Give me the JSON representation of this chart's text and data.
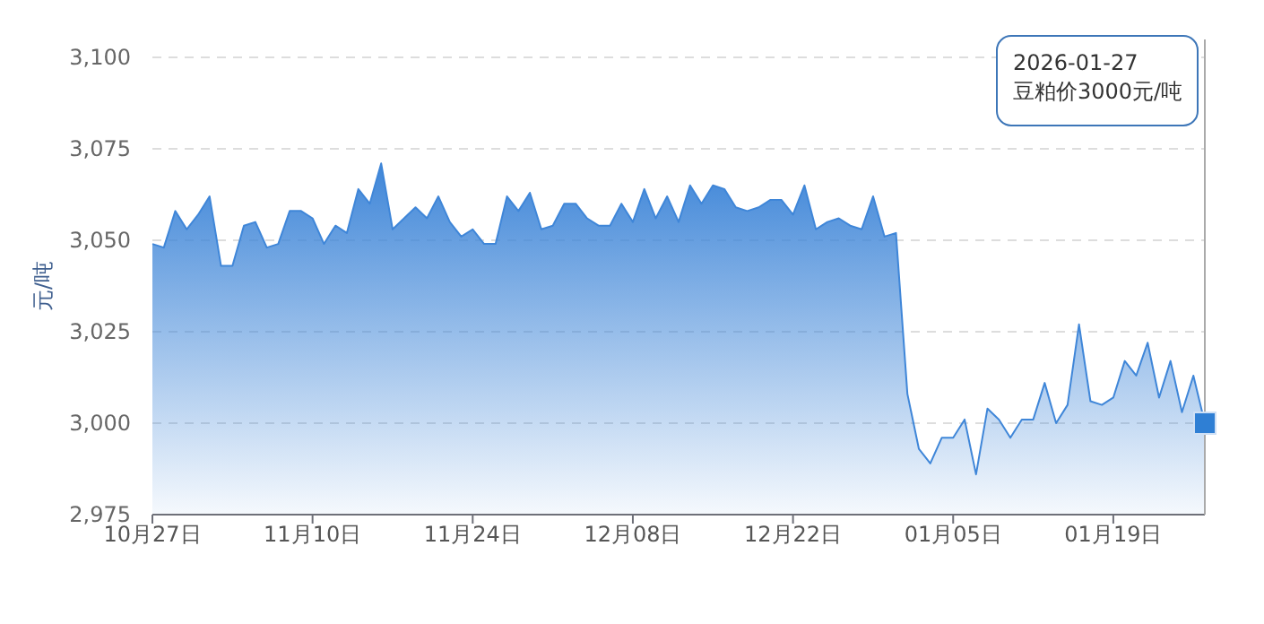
{
  "chart_data": {
    "type": "area",
    "ylabel": "元/吨",
    "x": [
      "2025-10-27",
      "2025-10-28",
      "2025-10-29",
      "2025-10-30",
      "2025-10-31",
      "2025-11-01",
      "2025-11-02",
      "2025-11-03",
      "2025-11-04",
      "2025-11-05",
      "2025-11-06",
      "2025-11-07",
      "2025-11-08",
      "2025-11-09",
      "2025-11-10",
      "2025-11-11",
      "2025-11-12",
      "2025-11-13",
      "2025-11-14",
      "2025-11-15",
      "2025-11-16",
      "2025-11-17",
      "2025-11-18",
      "2025-11-19",
      "2025-11-20",
      "2025-11-21",
      "2025-11-22",
      "2025-11-23",
      "2025-11-24",
      "2025-11-25",
      "2025-11-26",
      "2025-11-27",
      "2025-11-28",
      "2025-11-29",
      "2025-11-30",
      "2025-12-01",
      "2025-12-02",
      "2025-12-03",
      "2025-12-04",
      "2025-12-05",
      "2025-12-06",
      "2025-12-07",
      "2025-12-08",
      "2025-12-09",
      "2025-12-10",
      "2025-12-11",
      "2025-12-12",
      "2025-12-13",
      "2025-12-14",
      "2025-12-15",
      "2025-12-16",
      "2025-12-17",
      "2025-12-18",
      "2025-12-19",
      "2025-12-20",
      "2025-12-21",
      "2025-12-22",
      "2025-12-23",
      "2025-12-24",
      "2025-12-25",
      "2025-12-26",
      "2025-12-27",
      "2025-12-28",
      "2025-12-29",
      "2025-12-30",
      "2025-12-31",
      "2026-01-01",
      "2026-01-02",
      "2026-01-03",
      "2026-01-04",
      "2026-01-05",
      "2026-01-06",
      "2026-01-07",
      "2026-01-08",
      "2026-01-09",
      "2026-01-10",
      "2026-01-11",
      "2026-01-12",
      "2026-01-13",
      "2026-01-14",
      "2026-01-15",
      "2026-01-16",
      "2026-01-17",
      "2026-01-18",
      "2026-01-19",
      "2026-01-20",
      "2026-01-21",
      "2026-01-22",
      "2026-01-23",
      "2026-01-24",
      "2026-01-25",
      "2026-01-26",
      "2026-01-27"
    ],
    "series": [
      {
        "color": "#3f86d8",
        "values": [
          3049,
          3048,
          3058,
          3053,
          3057,
          3062,
          3043,
          3043,
          3054,
          3055,
          3048,
          3049,
          3058,
          3058,
          3056,
          3049,
          3054,
          3052,
          3064,
          3060,
          3071,
          3053,
          3056,
          3059,
          3056,
          3062,
          3055,
          3051,
          3053,
          3049,
          3049,
          3062,
          3058,
          3063,
          3053,
          3054,
          3060,
          3060,
          3056,
          3054,
          3054,
          3060,
          3055,
          3064,
          3056,
          3062,
          3055,
          3065,
          3060,
          3065,
          3064,
          3059,
          3058,
          3059,
          3061,
          3061,
          3057,
          3065,
          3053,
          3055,
          3056,
          3054,
          3053,
          3062,
          3051,
          3052,
          3008,
          2993,
          2989,
          2996,
          2996,
          3001,
          2986,
          3004,
          3001,
          2996,
          3001,
          3001,
          3011,
          3000,
          3005,
          3027,
          3006,
          3005,
          3007,
          3017,
          3013,
          3022,
          3007,
          3017,
          3003,
          3013,
          3000
        ]
      }
    ],
    "xlim": [
      "2025-10-27",
      "2026-01-27"
    ],
    "xticks": [
      {
        "value": "2025-10-27",
        "label": "10月27日"
      },
      {
        "value": "2025-11-10",
        "label": "11月10日"
      },
      {
        "value": "2025-11-24",
        "label": "11月24日"
      },
      {
        "value": "2025-12-08",
        "label": "12月08日"
      },
      {
        "value": "2025-12-22",
        "label": "12月22日"
      },
      {
        "value": "2026-01-05",
        "label": "01月05日"
      },
      {
        "value": "2026-01-19",
        "label": "01月19日"
      }
    ],
    "ylim": [
      2975,
      3100
    ],
    "yticks": [
      {
        "value": 2975,
        "label": "2,975"
      },
      {
        "value": 3000,
        "label": "3,000"
      },
      {
        "value": 3025,
        "label": "3,025"
      },
      {
        "value": 3050,
        "label": "3,050"
      },
      {
        "value": 3075,
        "label": "3,075"
      },
      {
        "value": 3100,
        "label": "3,100"
      }
    ],
    "grid": "y",
    "annotations": [
      "2026-01-27\n豆粕价3000元/吨"
    ]
  }
}
